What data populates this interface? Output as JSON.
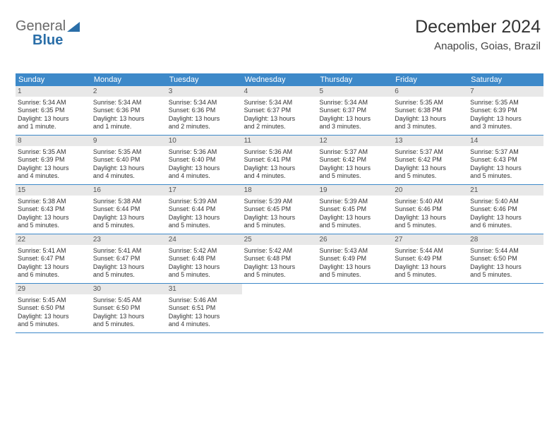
{
  "logo": {
    "text1": "General",
    "text2": "Blue"
  },
  "header": {
    "title": "December 2024",
    "location": "Anapolis, Goias, Brazil"
  },
  "colors": {
    "header_bar": "#3d89c9",
    "daynum_bg": "#e8e8e8",
    "rule": "#3d89c9"
  },
  "day_names": [
    "Sunday",
    "Monday",
    "Tuesday",
    "Wednesday",
    "Thursday",
    "Friday",
    "Saturday"
  ],
  "weeks": [
    [
      {
        "n": "1",
        "sr": "Sunrise: 5:34 AM",
        "ss": "Sunset: 6:35 PM",
        "d1": "Daylight: 13 hours",
        "d2": "and 1 minute."
      },
      {
        "n": "2",
        "sr": "Sunrise: 5:34 AM",
        "ss": "Sunset: 6:36 PM",
        "d1": "Daylight: 13 hours",
        "d2": "and 1 minute."
      },
      {
        "n": "3",
        "sr": "Sunrise: 5:34 AM",
        "ss": "Sunset: 6:36 PM",
        "d1": "Daylight: 13 hours",
        "d2": "and 2 minutes."
      },
      {
        "n": "4",
        "sr": "Sunrise: 5:34 AM",
        "ss": "Sunset: 6:37 PM",
        "d1": "Daylight: 13 hours",
        "d2": "and 2 minutes."
      },
      {
        "n": "5",
        "sr": "Sunrise: 5:34 AM",
        "ss": "Sunset: 6:37 PM",
        "d1": "Daylight: 13 hours",
        "d2": "and 3 minutes."
      },
      {
        "n": "6",
        "sr": "Sunrise: 5:35 AM",
        "ss": "Sunset: 6:38 PM",
        "d1": "Daylight: 13 hours",
        "d2": "and 3 minutes."
      },
      {
        "n": "7",
        "sr": "Sunrise: 5:35 AM",
        "ss": "Sunset: 6:39 PM",
        "d1": "Daylight: 13 hours",
        "d2": "and 3 minutes."
      }
    ],
    [
      {
        "n": "8",
        "sr": "Sunrise: 5:35 AM",
        "ss": "Sunset: 6:39 PM",
        "d1": "Daylight: 13 hours",
        "d2": "and 4 minutes."
      },
      {
        "n": "9",
        "sr": "Sunrise: 5:35 AM",
        "ss": "Sunset: 6:40 PM",
        "d1": "Daylight: 13 hours",
        "d2": "and 4 minutes."
      },
      {
        "n": "10",
        "sr": "Sunrise: 5:36 AM",
        "ss": "Sunset: 6:40 PM",
        "d1": "Daylight: 13 hours",
        "d2": "and 4 minutes."
      },
      {
        "n": "11",
        "sr": "Sunrise: 5:36 AM",
        "ss": "Sunset: 6:41 PM",
        "d1": "Daylight: 13 hours",
        "d2": "and 4 minutes."
      },
      {
        "n": "12",
        "sr": "Sunrise: 5:37 AM",
        "ss": "Sunset: 6:42 PM",
        "d1": "Daylight: 13 hours",
        "d2": "and 5 minutes."
      },
      {
        "n": "13",
        "sr": "Sunrise: 5:37 AM",
        "ss": "Sunset: 6:42 PM",
        "d1": "Daylight: 13 hours",
        "d2": "and 5 minutes."
      },
      {
        "n": "14",
        "sr": "Sunrise: 5:37 AM",
        "ss": "Sunset: 6:43 PM",
        "d1": "Daylight: 13 hours",
        "d2": "and 5 minutes."
      }
    ],
    [
      {
        "n": "15",
        "sr": "Sunrise: 5:38 AM",
        "ss": "Sunset: 6:43 PM",
        "d1": "Daylight: 13 hours",
        "d2": "and 5 minutes."
      },
      {
        "n": "16",
        "sr": "Sunrise: 5:38 AM",
        "ss": "Sunset: 6:44 PM",
        "d1": "Daylight: 13 hours",
        "d2": "and 5 minutes."
      },
      {
        "n": "17",
        "sr": "Sunrise: 5:39 AM",
        "ss": "Sunset: 6:44 PM",
        "d1": "Daylight: 13 hours",
        "d2": "and 5 minutes."
      },
      {
        "n": "18",
        "sr": "Sunrise: 5:39 AM",
        "ss": "Sunset: 6:45 PM",
        "d1": "Daylight: 13 hours",
        "d2": "and 5 minutes."
      },
      {
        "n": "19",
        "sr": "Sunrise: 5:39 AM",
        "ss": "Sunset: 6:45 PM",
        "d1": "Daylight: 13 hours",
        "d2": "and 5 minutes."
      },
      {
        "n": "20",
        "sr": "Sunrise: 5:40 AM",
        "ss": "Sunset: 6:46 PM",
        "d1": "Daylight: 13 hours",
        "d2": "and 5 minutes."
      },
      {
        "n": "21",
        "sr": "Sunrise: 5:40 AM",
        "ss": "Sunset: 6:46 PM",
        "d1": "Daylight: 13 hours",
        "d2": "and 6 minutes."
      }
    ],
    [
      {
        "n": "22",
        "sr": "Sunrise: 5:41 AM",
        "ss": "Sunset: 6:47 PM",
        "d1": "Daylight: 13 hours",
        "d2": "and 6 minutes."
      },
      {
        "n": "23",
        "sr": "Sunrise: 5:41 AM",
        "ss": "Sunset: 6:47 PM",
        "d1": "Daylight: 13 hours",
        "d2": "and 5 minutes."
      },
      {
        "n": "24",
        "sr": "Sunrise: 5:42 AM",
        "ss": "Sunset: 6:48 PM",
        "d1": "Daylight: 13 hours",
        "d2": "and 5 minutes."
      },
      {
        "n": "25",
        "sr": "Sunrise: 5:42 AM",
        "ss": "Sunset: 6:48 PM",
        "d1": "Daylight: 13 hours",
        "d2": "and 5 minutes."
      },
      {
        "n": "26",
        "sr": "Sunrise: 5:43 AM",
        "ss": "Sunset: 6:49 PM",
        "d1": "Daylight: 13 hours",
        "d2": "and 5 minutes."
      },
      {
        "n": "27",
        "sr": "Sunrise: 5:44 AM",
        "ss": "Sunset: 6:49 PM",
        "d1": "Daylight: 13 hours",
        "d2": "and 5 minutes."
      },
      {
        "n": "28",
        "sr": "Sunrise: 5:44 AM",
        "ss": "Sunset: 6:50 PM",
        "d1": "Daylight: 13 hours",
        "d2": "and 5 minutes."
      }
    ],
    [
      {
        "n": "29",
        "sr": "Sunrise: 5:45 AM",
        "ss": "Sunset: 6:50 PM",
        "d1": "Daylight: 13 hours",
        "d2": "and 5 minutes."
      },
      {
        "n": "30",
        "sr": "Sunrise: 5:45 AM",
        "ss": "Sunset: 6:50 PM",
        "d1": "Daylight: 13 hours",
        "d2": "and 5 minutes."
      },
      {
        "n": "31",
        "sr": "Sunrise: 5:46 AM",
        "ss": "Sunset: 6:51 PM",
        "d1": "Daylight: 13 hours",
        "d2": "and 4 minutes."
      },
      {
        "empty": true
      },
      {
        "empty": true
      },
      {
        "empty": true
      },
      {
        "empty": true
      }
    ]
  ]
}
